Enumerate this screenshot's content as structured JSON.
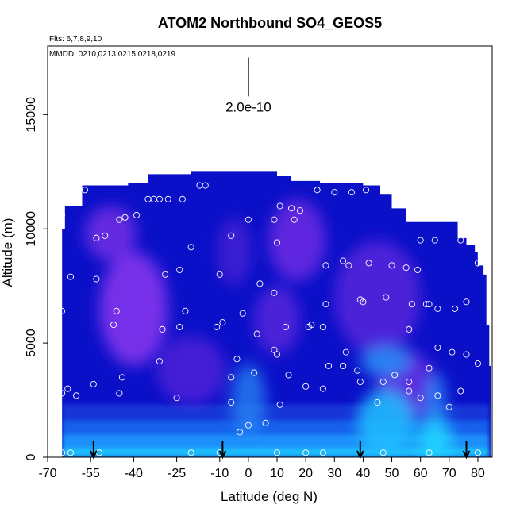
{
  "chart_data": {
    "type": "heatmap",
    "title": "ATOM2 Northbound SO4_GEOS5",
    "notes": {
      "flights": "Flts: 6,7,8,9,10",
      "dates": "MMDD: 0210,0213,0215,0218,0219"
    },
    "xlabel": "Latitude (deg N)",
    "ylabel": "Altitude (m)",
    "xlim": [
      -70,
      85
    ],
    "ylim": [
      0,
      18000
    ],
    "x_ticks": [
      {
        "value": -70,
        "label": "-70"
      },
      {
        "value": -55,
        "label": "-55"
      },
      {
        "value": -40,
        "label": "-40"
      },
      {
        "value": -25,
        "label": "-25"
      },
      {
        "value": -10,
        "label": "-10"
      },
      {
        "value": 0,
        "label": "0"
      },
      {
        "value": 10,
        "label": "10"
      },
      {
        "value": 20,
        "label": "20"
      },
      {
        "value": 30,
        "label": "30"
      },
      {
        "value": 40,
        "label": "40"
      },
      {
        "value": 50,
        "label": "50"
      },
      {
        "value": 60,
        "label": "60"
      },
      {
        "value": 70,
        "label": "70"
      },
      {
        "value": 80,
        "label": "80"
      }
    ],
    "y_ticks": [
      {
        "value": 0,
        "label": "0"
      },
      {
        "value": 5000,
        "label": "5000"
      },
      {
        "value": 10000,
        "label": "10000"
      },
      {
        "value": 15000,
        "label": "15000"
      }
    ],
    "scale_bar": {
      "label": "2.0e-10",
      "x": 0,
      "y_bottom": 15800,
      "y_top": 17500
    },
    "colors": {
      "low": "#0a10c8",
      "mid_violet": "#7a2ee6",
      "high_cyan": "#1ed8ff",
      "mid_blue": "#2a6ff0"
    },
    "curtain_top": [
      {
        "lat": -65,
        "alt": 10000
      },
      {
        "lat": -64,
        "alt": 11000
      },
      {
        "lat": -58,
        "alt": 11900
      },
      {
        "lat": -45,
        "alt": 11900
      },
      {
        "lat": -42,
        "alt": 12000
      },
      {
        "lat": -35,
        "alt": 12400
      },
      {
        "lat": -20,
        "alt": 12500
      },
      {
        "lat": -5,
        "alt": 12500
      },
      {
        "lat": 5,
        "alt": 12500
      },
      {
        "lat": 10,
        "alt": 12300
      },
      {
        "lat": 15,
        "alt": 12100
      },
      {
        "lat": 25,
        "alt": 12000
      },
      {
        "lat": 40,
        "alt": 11900
      },
      {
        "lat": 46,
        "alt": 11500
      },
      {
        "lat": 50,
        "alt": 10900
      },
      {
        "lat": 55,
        "alt": 10300
      },
      {
        "lat": 72,
        "alt": 10300
      },
      {
        "lat": 73,
        "alt": 9600
      },
      {
        "lat": 76,
        "alt": 9300
      },
      {
        "lat": 79,
        "alt": 9000
      },
      {
        "lat": 80,
        "alt": 8400
      },
      {
        "lat": 82,
        "alt": 8000
      },
      {
        "lat": 83,
        "alt": 5800
      },
      {
        "lat": 84,
        "alt": 4000
      }
    ],
    "blobs": [
      {
        "lat": -40,
        "alt": 6500,
        "rlat": 12,
        "ralt": 2500,
        "color": "#8a35ee",
        "opacity": 0.85
      },
      {
        "lat": -48,
        "alt": 9800,
        "rlat": 9,
        "ralt": 1200,
        "color": "#7a2ee6",
        "opacity": 0.8
      },
      {
        "lat": 17,
        "alt": 9500,
        "rlat": 10,
        "ralt": 1800,
        "color": "#7a2ee6",
        "opacity": 0.75
      },
      {
        "lat": 10,
        "alt": 6000,
        "rlat": 8,
        "ralt": 1500,
        "color": "#6a2ae0",
        "opacity": 0.7
      },
      {
        "lat": 45,
        "alt": 7000,
        "rlat": 15,
        "ralt": 2500,
        "color": "#6a2ae0",
        "opacity": 0.7
      },
      {
        "lat": -20,
        "alt": 3800,
        "rlat": 12,
        "ralt": 1500,
        "color": "#6a2ae0",
        "opacity": 0.6
      },
      {
        "lat": 55,
        "alt": 3200,
        "rlat": 10,
        "ralt": 1500,
        "color": "#7a2ee6",
        "opacity": 0.7
      },
      {
        "lat": -5,
        "alt": 9000,
        "rlat": 6,
        "ralt": 1500,
        "color": "#5a24d8",
        "opacity": 0.6
      },
      {
        "lat": 48,
        "alt": 4200,
        "rlat": 9,
        "ralt": 700,
        "color": "#2a8af5",
        "opacity": 0.9
      },
      {
        "lat": 65,
        "alt": 2500,
        "rlat": 4,
        "ralt": 1200,
        "color": "#2a8af5",
        "opacity": 0.8
      },
      {
        "lat": 0,
        "alt": 2500,
        "rlat": 6,
        "ralt": 1600,
        "color": "#2a8af5",
        "opacity": 0.75
      },
      {
        "lat": 48,
        "alt": 1500,
        "rlat": 10,
        "ralt": 1500,
        "color": "#1ec0ff",
        "opacity": 0.85
      },
      {
        "lat": 65,
        "alt": 800,
        "rlat": 6,
        "ralt": 900,
        "color": "#1ed8ff",
        "opacity": 0.85
      }
    ],
    "bands": [
      {
        "lat0": -65,
        "lat1": 84,
        "alt0": 0,
        "alt1": 400,
        "color": "#1ec8ff",
        "opacity": 0.95
      },
      {
        "lat0": -65,
        "lat1": 84,
        "alt0": 400,
        "alt1": 1000,
        "color": "#1e9cff",
        "opacity": 0.9
      },
      {
        "lat0": -65,
        "lat1": 84,
        "alt0": 1000,
        "alt1": 1600,
        "color": "#1a6ef2",
        "opacity": 0.85
      },
      {
        "lat0": -65,
        "lat1": 84,
        "alt0": 1600,
        "alt1": 2300,
        "color": "#1846de",
        "opacity": 0.7
      }
    ],
    "points": [
      [
        -65,
        200
      ],
      [
        -62,
        200
      ],
      [
        -52,
        200
      ],
      [
        -20,
        200
      ],
      [
        -10,
        200
      ],
      [
        10,
        200
      ],
      [
        20,
        200
      ],
      [
        26,
        200
      ],
      [
        47,
        200
      ],
      [
        63,
        200
      ],
      [
        80,
        200
      ],
      [
        -65,
        2800
      ],
      [
        -63,
        3000
      ],
      [
        -60,
        2700
      ],
      [
        -54,
        3200
      ],
      [
        -45,
        2800
      ],
      [
        -44,
        3500
      ],
      [
        -25,
        2600
      ],
      [
        -6,
        2400
      ],
      [
        -3,
        1100
      ],
      [
        0,
        1400
      ],
      [
        6,
        1500
      ],
      [
        11,
        2300
      ],
      [
        20,
        3100
      ],
      [
        26,
        3000
      ],
      [
        -31,
        4200
      ],
      [
        -4,
        4300
      ],
      [
        -6,
        3500
      ],
      [
        2,
        3700
      ],
      [
        9,
        4700
      ],
      [
        10,
        4500
      ],
      [
        14,
        3600
      ],
      [
        22,
        5800
      ],
      [
        26,
        5700
      ],
      [
        28,
        4000
      ],
      [
        33,
        4000
      ],
      [
        34,
        4600
      ],
      [
        38,
        3800
      ],
      [
        39,
        3300
      ],
      [
        45,
        2400
      ],
      [
        47,
        3300
      ],
      [
        51,
        3600
      ],
      [
        56,
        2900
      ],
      [
        56,
        3300
      ],
      [
        60,
        2600
      ],
      [
        63,
        3900
      ],
      [
        66,
        2700
      ],
      [
        70,
        2200
      ],
      [
        74,
        2900
      ],
      [
        76,
        4500
      ],
      [
        80,
        4100
      ],
      [
        -65,
        6400
      ],
      [
        -47,
        5800
      ],
      [
        -46,
        6400
      ],
      [
        -30,
        5600
      ],
      [
        -24,
        5700
      ],
      [
        -22,
        6400
      ],
      [
        -11,
        5700
      ],
      [
        -9,
        5900
      ],
      [
        -2,
        6300
      ],
      [
        3,
        5400
      ],
      [
        13,
        5700
      ],
      [
        21,
        5700
      ],
      [
        27,
        6700
      ],
      [
        39,
        6900
      ],
      [
        40,
        6800
      ],
      [
        48,
        7000
      ],
      [
        57,
        6700
      ],
      [
        56,
        5600
      ],
      [
        62,
        6700
      ],
      [
        63,
        6700
      ],
      [
        66,
        4800
      ],
      [
        66,
        6500
      ],
      [
        71,
        4600
      ],
      [
        72,
        6500
      ],
      [
        76,
        6800
      ],
      [
        -62,
        7900
      ],
      [
        -53,
        7800
      ],
      [
        -29,
        8000
      ],
      [
        -24,
        8200
      ],
      [
        -10,
        8000
      ],
      [
        4,
        7600
      ],
      [
        9,
        7200
      ],
      [
        27,
        8400
      ],
      [
        33,
        8600
      ],
      [
        35,
        8400
      ],
      [
        42,
        8500
      ],
      [
        50,
        8400
      ],
      [
        55,
        8300
      ],
      [
        59,
        8200
      ],
      [
        80,
        8500
      ],
      [
        -67,
        10100
      ],
      [
        -65,
        10600
      ],
      [
        -53,
        9600
      ],
      [
        -50,
        9700
      ],
      [
        -45,
        10400
      ],
      [
        -43,
        10500
      ],
      [
        -39,
        10600
      ],
      [
        -20,
        9200
      ],
      [
        -6,
        9700
      ],
      [
        0,
        10400
      ],
      [
        9,
        10400
      ],
      [
        10,
        9400
      ],
      [
        16,
        10400
      ],
      [
        11,
        11000
      ],
      [
        15,
        10900
      ],
      [
        18,
        10800
      ],
      [
        36,
        11600
      ],
      [
        41,
        11700
      ],
      [
        60,
        9500
      ],
      [
        65,
        9500
      ],
      [
        74,
        9500
      ],
      [
        -57,
        11700
      ],
      [
        -35,
        11300
      ],
      [
        -33,
        11300
      ],
      [
        -31,
        11300
      ],
      [
        -28,
        11300
      ],
      [
        -23,
        11300
      ],
      [
        -17,
        11900
      ],
      [
        -15,
        11900
      ],
      [
        24,
        11700
      ],
      [
        30,
        11600
      ]
    ],
    "arrows": [
      {
        "lat": -54
      },
      {
        "lat": -9
      },
      {
        "lat": 39
      },
      {
        "lat": 76
      }
    ]
  }
}
